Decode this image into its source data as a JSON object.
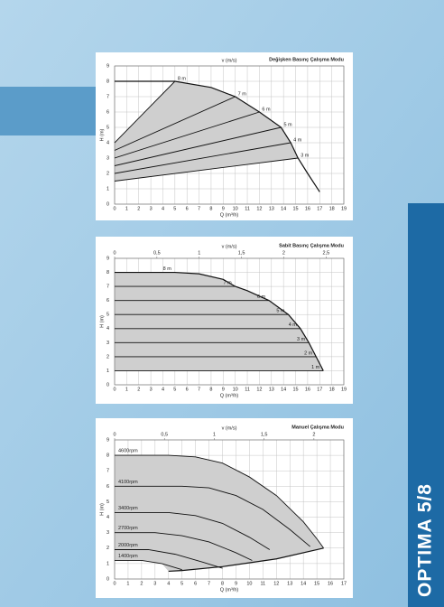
{
  "side_title": "OPTIMA 5/8",
  "chart_data": [
    {
      "type": "line",
      "title": "Değişken Basınç Çalışma Modu",
      "xlabel": "Q (m³/h)",
      "ylabel": "H (m)",
      "x2label": "v (m/s)",
      "xlim": [
        0,
        19
      ],
      "ylim": [
        0,
        9
      ],
      "xticks": [
        0,
        1,
        2,
        3,
        4,
        5,
        6,
        7,
        8,
        9,
        10,
        11,
        12,
        13,
        14,
        15,
        16,
        17,
        18,
        19
      ],
      "yticks": [
        0,
        1,
        2,
        3,
        4,
        5,
        6,
        7,
        8,
        9
      ],
      "grid": true,
      "label_anchor": "end",
      "series": [
        {
          "name": "8 m",
          "x": [
            0,
            5
          ],
          "values": [
            4,
            8
          ]
        },
        {
          "name": "7 m",
          "x": [
            0,
            10
          ],
          "values": [
            3.5,
            7
          ]
        },
        {
          "name": "6 m",
          "x": [
            0,
            12
          ],
          "values": [
            3,
            6
          ]
        },
        {
          "name": "5 m",
          "x": [
            0,
            13.8
          ],
          "values": [
            2.5,
            5
          ]
        },
        {
          "name": "4 m",
          "x": [
            0,
            14.6
          ],
          "values": [
            2,
            4
          ]
        },
        {
          "name": "3 m",
          "x": [
            0,
            15.2
          ],
          "values": [
            1.5,
            3
          ]
        }
      ],
      "max_curve": {
        "x": [
          0,
          5,
          8,
          10,
          12,
          13.8,
          14.6,
          15.2,
          16,
          17
        ],
        "values": [
          8,
          8,
          7.6,
          7,
          6,
          5,
          4,
          3,
          2,
          0.8
        ]
      },
      "area": {
        "x": [
          0,
          5,
          8,
          10,
          12,
          13.8,
          14.6,
          15.2,
          0
        ],
        "values": [
          4,
          8,
          7.6,
          7,
          6,
          5,
          4,
          3,
          1.5
        ]
      }
    },
    {
      "type": "line",
      "title": "Sabit Basınç Çalışma Modu",
      "xlabel": "Q (m³/h)",
      "ylabel": "H (m)",
      "x2label": "v (m/s)",
      "xlim": [
        0,
        19
      ],
      "ylim": [
        0,
        9
      ],
      "xticks": [
        0,
        1,
        2,
        3,
        4,
        5,
        6,
        7,
        8,
        9,
        10,
        11,
        12,
        13,
        14,
        15,
        16,
        17,
        18,
        19
      ],
      "yticks": [
        0,
        1,
        2,
        3,
        4,
        5,
        6,
        7,
        8,
        9
      ],
      "x2lim": [
        0,
        2.71
      ],
      "x2ticks": [
        0,
        {
          "value": 0.5,
          "label": "0,5"
        },
        1,
        {
          "value": 1.5,
          "label": "1,5"
        },
        2,
        {
          "value": 2.5,
          "label": "2,5"
        }
      ],
      "grid": true,
      "label_anchor": "before-end",
      "series": [
        {
          "name": "8 m",
          "x": [
            0,
            5
          ],
          "values": [
            8,
            8
          ]
        },
        {
          "name": "7 m",
          "x": [
            0,
            10
          ],
          "values": [
            7,
            7
          ]
        },
        {
          "name": "6 m",
          "x": [
            0,
            12.8
          ],
          "values": [
            6,
            6
          ]
        },
        {
          "name": "5 m",
          "x": [
            0,
            14.4
          ],
          "values": [
            5,
            5
          ]
        },
        {
          "name": "4 m",
          "x": [
            0,
            15.4
          ],
          "values": [
            4,
            4
          ]
        },
        {
          "name": "3 m",
          "x": [
            0,
            16.1
          ],
          "values": [
            3,
            3
          ]
        },
        {
          "name": "2 m",
          "x": [
            0,
            16.7
          ],
          "values": [
            2,
            2
          ]
        },
        {
          "name": "1 m",
          "x": [
            0,
            17.3
          ],
          "values": [
            1,
            1
          ]
        }
      ],
      "max_curve": {
        "x": [
          0,
          5,
          7,
          9,
          10,
          11,
          12.8,
          14.4,
          15.4,
          16.1,
          16.7,
          17.3
        ],
        "values": [
          8,
          8,
          7.9,
          7.5,
          7,
          6.7,
          6,
          5,
          4,
          3,
          2,
          1
        ]
      },
      "area": {
        "x": [
          0,
          5,
          7,
          9,
          10,
          11,
          12.8,
          14.4,
          15.4,
          16.1,
          16.7,
          17.3,
          0
        ],
        "values": [
          8,
          8,
          7.9,
          7.5,
          7,
          6.7,
          6,
          5,
          4,
          3,
          2,
          1,
          1
        ]
      }
    },
    {
      "type": "line",
      "title": "Manuel Çalışma Modu",
      "xlabel": "Q (m³/h)",
      "ylabel": "H (m)",
      "x2label": "v (m/s)",
      "xlim": [
        0,
        17
      ],
      "ylim": [
        0,
        9
      ],
      "xticks": [
        0,
        1,
        2,
        3,
        4,
        5,
        6,
        7,
        8,
        9,
        10,
        11,
        12,
        13,
        14,
        15,
        16,
        17
      ],
      "yticks": [
        0,
        1,
        2,
        3,
        4,
        5,
        6,
        7,
        8,
        9
      ],
      "x2lim": [
        0,
        2.3
      ],
      "x2ticks": [
        0,
        {
          "value": 0.5,
          "label": "0,5"
        },
        1,
        {
          "value": 1.5,
          "label": "1,5"
        },
        2
      ],
      "grid": true,
      "label_anchor": "start",
      "series": [
        {
          "name": "4600rpm",
          "x": [
            0,
            4,
            6,
            8,
            10,
            12,
            14,
            15,
            15.5
          ],
          "values": [
            8,
            8,
            7.9,
            7.5,
            6.6,
            5.4,
            3.7,
            2.6,
            2
          ]
        },
        {
          "name": "4100rpm",
          "x": [
            0,
            5,
            7,
            9,
            11,
            13,
            14.5
          ],
          "values": [
            6,
            6,
            5.9,
            5.4,
            4.5,
            3.2,
            2.1
          ]
        },
        {
          "name": "3400rpm",
          "x": [
            0,
            4,
            6,
            8,
            10,
            11.5
          ],
          "values": [
            4.3,
            4.3,
            4.1,
            3.6,
            2.7,
            1.9
          ]
        },
        {
          "name": "2700rpm",
          "x": [
            0,
            3,
            5,
            7,
            9,
            10.2
          ],
          "values": [
            3,
            3,
            2.8,
            2.4,
            1.7,
            1.2
          ]
        },
        {
          "name": "2000rpm",
          "x": [
            0,
            2.5,
            4.5,
            6.5,
            8
          ],
          "values": [
            1.9,
            1.9,
            1.6,
            1.1,
            0.7
          ]
        },
        {
          "name": "1400rpm",
          "x": [
            0,
            2,
            3.5,
            5
          ],
          "values": [
            1.2,
            1.2,
            1,
            0.6
          ]
        }
      ],
      "max_curve": {
        "x": [
          15.5,
          12,
          8,
          5,
          4
        ],
        "values": [
          2,
          1.3,
          0.8,
          0.55,
          0.5
        ]
      },
      "area": {
        "x": [
          0,
          4,
          6,
          8,
          10,
          12,
          14,
          15,
          15.5,
          12,
          8,
          5,
          4,
          3.5,
          2,
          0
        ],
        "values": [
          8,
          8,
          7.9,
          7.5,
          6.6,
          5.4,
          3.7,
          2.6,
          2,
          1.3,
          0.8,
          0.55,
          0.5,
          1,
          1.2,
          1.2
        ]
      }
    }
  ]
}
